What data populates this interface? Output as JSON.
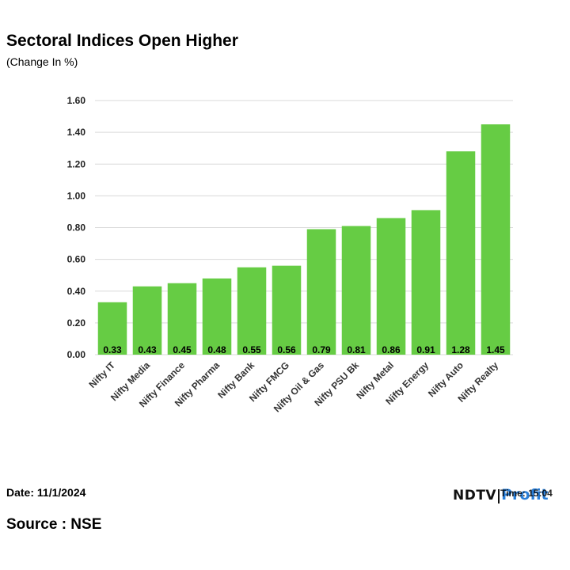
{
  "header": {
    "title": "Sectoral Indices Open Higher",
    "subtitle": "(Change In %)"
  },
  "footer": {
    "date": "Date: 11/1/2024",
    "time": "Time: 15:04",
    "source": "Source : NSE",
    "brand_ndtv": "NDTV",
    "brand_profit": "Profit"
  },
  "colors": {
    "bar": "#66cc44",
    "grid": "#d9d9d9",
    "brand_profit": "#2a7fd9"
  },
  "chart_data": {
    "type": "bar",
    "title": "Sectoral Indices Open Higher",
    "subtitle": "(Change In %)",
    "xlabel": "",
    "ylabel": "",
    "categories": [
      "Nifty IT",
      "Nifty Media",
      "Nifty Finance",
      "Nifty Pharma",
      "Nifty Bank",
      "Nifty FMCG",
      "Nifty Oil & Gas",
      "Nifty PSU Bk",
      "Nifty Metal",
      "Nifty Energy",
      "Nifty Auto",
      "Nifty Realty"
    ],
    "values": [
      0.33,
      0.43,
      0.45,
      0.48,
      0.55,
      0.56,
      0.79,
      0.81,
      0.86,
      0.91,
      1.28,
      1.45
    ],
    "value_labels": [
      "0.33",
      "0.43",
      "0.45",
      "0.48",
      "0.55",
      "0.56",
      "0.79",
      "0.81",
      "0.86",
      "0.91",
      "1.28",
      "1.45"
    ],
    "ylim": [
      0,
      1.6
    ],
    "yticks": [
      "0.00",
      "0.20",
      "0.40",
      "0.60",
      "0.80",
      "1.00",
      "1.20",
      "1.40",
      "1.60"
    ],
    "grid": true,
    "legend": "none"
  }
}
